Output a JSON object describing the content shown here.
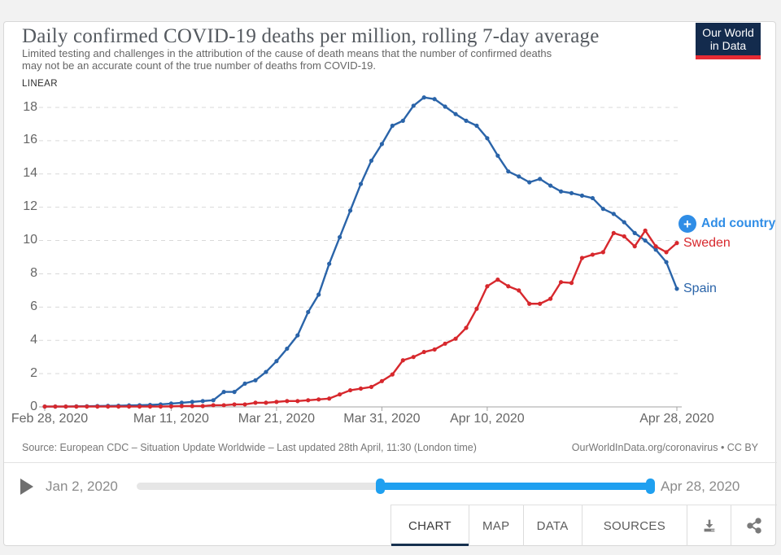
{
  "header": {
    "title": "Daily confirmed COVID-19 deaths per million, rolling 7-day average",
    "subtitle": "Limited testing and challenges in the attribution of the cause of death means that the number of confirmed deaths may not be an accurate count of the true number of deaths from COVID-19.",
    "logo_line1": "Our World",
    "logo_line2": "in Data"
  },
  "chart": {
    "scale_label": "LINEAR",
    "add_country_label": "Add country"
  },
  "footer": {
    "source_left": "Source: European CDC – Situation Update Worldwide – Last updated 28th April, 11:30 (London time)",
    "source_right": "OurWorldInData.org/coronavirus • CC BY"
  },
  "timeline": {
    "start_label": "Jan 2, 2020",
    "end_label": "Apr 28, 2020",
    "play_icon": "play-icon"
  },
  "tabs": {
    "items": [
      {
        "label": "CHART",
        "active": true
      },
      {
        "label": "MAP",
        "active": false
      },
      {
        "label": "DATA",
        "active": false
      },
      {
        "label": "SOURCES",
        "active": false
      }
    ],
    "download_icon": "download-tray-icon",
    "share_icon": "share-nodes-icon"
  },
  "colors": {
    "spain_blue": "#2a64a9",
    "sweden_red": "#d7282d",
    "add_country_blue": "#2f8de6",
    "slider_blue": "#1fa0f0",
    "logo_navy": "#132b4d",
    "logo_red": "#e62b34",
    "tab_underline_navy": "#16304f",
    "gridline_gray": "#d9d9d9",
    "axis_gray": "#a3a3a3"
  },
  "chart_data": {
    "type": "line",
    "title": "Daily confirmed COVID-19 deaths per million, rolling 7-day average",
    "xlabel": "",
    "ylabel": "",
    "ylim": [
      0,
      18
    ],
    "yticks": [
      0,
      2,
      4,
      6,
      8,
      10,
      12,
      14,
      16,
      18
    ],
    "grid": "dashed-horizontal",
    "legend_position": "right-of-line-ends",
    "x_dates": [
      "2020-02-28",
      "2020-02-29",
      "2020-03-01",
      "2020-03-02",
      "2020-03-03",
      "2020-03-04",
      "2020-03-05",
      "2020-03-06",
      "2020-03-07",
      "2020-03-08",
      "2020-03-09",
      "2020-03-10",
      "2020-03-11",
      "2020-03-12",
      "2020-03-13",
      "2020-03-14",
      "2020-03-15",
      "2020-03-16",
      "2020-03-17",
      "2020-03-18",
      "2020-03-19",
      "2020-03-20",
      "2020-03-21",
      "2020-03-22",
      "2020-03-23",
      "2020-03-24",
      "2020-03-25",
      "2020-03-26",
      "2020-03-27",
      "2020-03-28",
      "2020-03-29",
      "2020-03-30",
      "2020-03-31",
      "2020-04-01",
      "2020-04-02",
      "2020-04-03",
      "2020-04-04",
      "2020-04-05",
      "2020-04-06",
      "2020-04-07",
      "2020-04-08",
      "2020-04-09",
      "2020-04-10",
      "2020-04-11",
      "2020-04-12",
      "2020-04-13",
      "2020-04-14",
      "2020-04-15",
      "2020-04-16",
      "2020-04-17",
      "2020-04-18",
      "2020-04-19",
      "2020-04-20",
      "2020-04-21",
      "2020-04-22",
      "2020-04-23",
      "2020-04-24",
      "2020-04-25",
      "2020-04-26",
      "2020-04-27",
      "2020-04-28"
    ],
    "xticks": [
      {
        "label": "Feb 28, 2020",
        "index": 0
      },
      {
        "label": "Mar 11, 2020",
        "index": 12
      },
      {
        "label": "Mar 21, 2020",
        "index": 22
      },
      {
        "label": "Mar 31, 2020",
        "index": 32
      },
      {
        "label": "Apr 10, 2020",
        "index": 42
      },
      {
        "label": "Apr 28, 2020",
        "index": 60
      }
    ],
    "series": [
      {
        "name": "Spain",
        "color": "#2a64a9",
        "values": [
          0.02,
          0.02,
          0.02,
          0.03,
          0.04,
          0.05,
          0.06,
          0.07,
          0.09,
          0.1,
          0.12,
          0.15,
          0.2,
          0.25,
          0.3,
          0.35,
          0.4,
          0.9,
          0.9,
          1.4,
          1.6,
          2.1,
          2.75,
          3.5,
          4.3,
          5.7,
          6.75,
          8.6,
          10.2,
          11.8,
          13.4,
          14.8,
          15.8,
          16.9,
          17.2,
          18.1,
          18.6,
          18.5,
          18.05,
          17.6,
          17.2,
          16.9,
          16.15,
          15.1,
          14.15,
          13.85,
          13.5,
          13.7,
          13.3,
          12.95,
          12.85,
          12.7,
          12.55,
          11.9,
          11.6,
          11.1,
          10.45,
          10.0,
          9.45,
          8.7,
          7.1
        ]
      },
      {
        "name": "Sweden",
        "color": "#d7282d",
        "values": [
          0.02,
          0.02,
          0.02,
          0.02,
          0.02,
          0.02,
          0.02,
          0.02,
          0.02,
          0.02,
          0.02,
          0.02,
          0.03,
          0.05,
          0.05,
          0.05,
          0.1,
          0.1,
          0.15,
          0.15,
          0.25,
          0.25,
          0.3,
          0.35,
          0.35,
          0.4,
          0.45,
          0.5,
          0.75,
          1.0,
          1.1,
          1.2,
          1.55,
          1.95,
          2.8,
          3.0,
          3.3,
          3.45,
          3.8,
          4.1,
          4.75,
          5.9,
          7.25,
          7.65,
          7.25,
          7.0,
          6.2,
          6.2,
          6.5,
          7.5,
          7.45,
          8.95,
          9.15,
          9.3,
          10.45,
          10.25,
          9.65,
          10.6,
          9.65,
          9.3,
          9.85
        ]
      }
    ]
  }
}
